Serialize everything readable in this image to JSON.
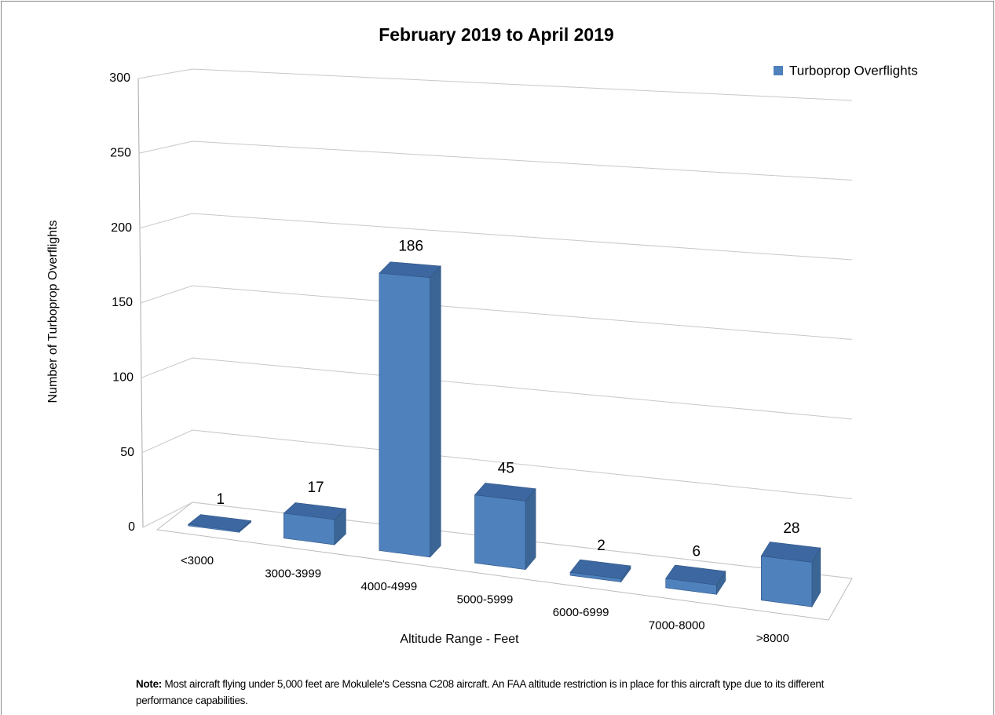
{
  "chart_data": {
    "type": "bar3d",
    "title": "February 2019 to April 2019",
    "x_label": "Altitude Range - Feet",
    "y_label": "Number of Turboprop Overflights",
    "categories": [
      "<3000",
      "3000-3999",
      "4000-4999",
      "5000-5999",
      "6000-6999",
      "7000-8000",
      ">8000"
    ],
    "series": [
      {
        "name": "Turboprop Overflights",
        "color": "#4f81bd",
        "values": [
          1,
          17,
          186,
          45,
          2,
          6,
          28
        ]
      }
    ],
    "ylim": [
      0,
      300
    ],
    "yticks": [
      0,
      50,
      100,
      150,
      200,
      250,
      300
    ],
    "grid": true,
    "legend": "top-right"
  },
  "note": {
    "label": "Note:",
    "text": "Most aircraft flying under 5,000 feet are Mokulele's Cessna C208  aircraft. An FAA altitude restriction is in place for this aircraft type due to its different performance capabilities."
  }
}
